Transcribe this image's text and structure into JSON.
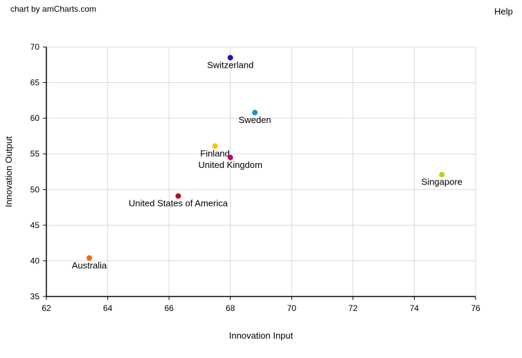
{
  "header": {
    "credit": "chart by amCharts.com",
    "help": "Help"
  },
  "chart_data": {
    "type": "scatter",
    "xlabel": "Innovation Input",
    "ylabel": "Innovation Output",
    "xlim": [
      62,
      76
    ],
    "ylim": [
      35,
      70
    ],
    "xticks": [
      62,
      64,
      66,
      68,
      70,
      72,
      74,
      76
    ],
    "yticks": [
      35,
      40,
      45,
      50,
      55,
      60,
      65,
      70
    ],
    "grid": true,
    "points": [
      {
        "label": "Switzerland",
        "x": 68.0,
        "y": 68.5,
        "color": "#2b0fb3"
      },
      {
        "label": "Sweden",
        "x": 68.8,
        "y": 60.8,
        "color": "#1f8fc4"
      },
      {
        "label": "Finland",
        "x": 67.5,
        "y": 56.1,
        "color": "#f5c40e"
      },
      {
        "label": "United Kingdom",
        "x": 68.0,
        "y": 54.5,
        "color": "#b3126a"
      },
      {
        "label": "Singapore",
        "x": 74.9,
        "y": 52.1,
        "color": "#b5d41f"
      },
      {
        "label": "United States of America",
        "x": 66.3,
        "y": 49.1,
        "color": "#b01219"
      },
      {
        "label": "Australia",
        "x": 63.4,
        "y": 40.4,
        "color": "#f06a0a"
      }
    ]
  }
}
